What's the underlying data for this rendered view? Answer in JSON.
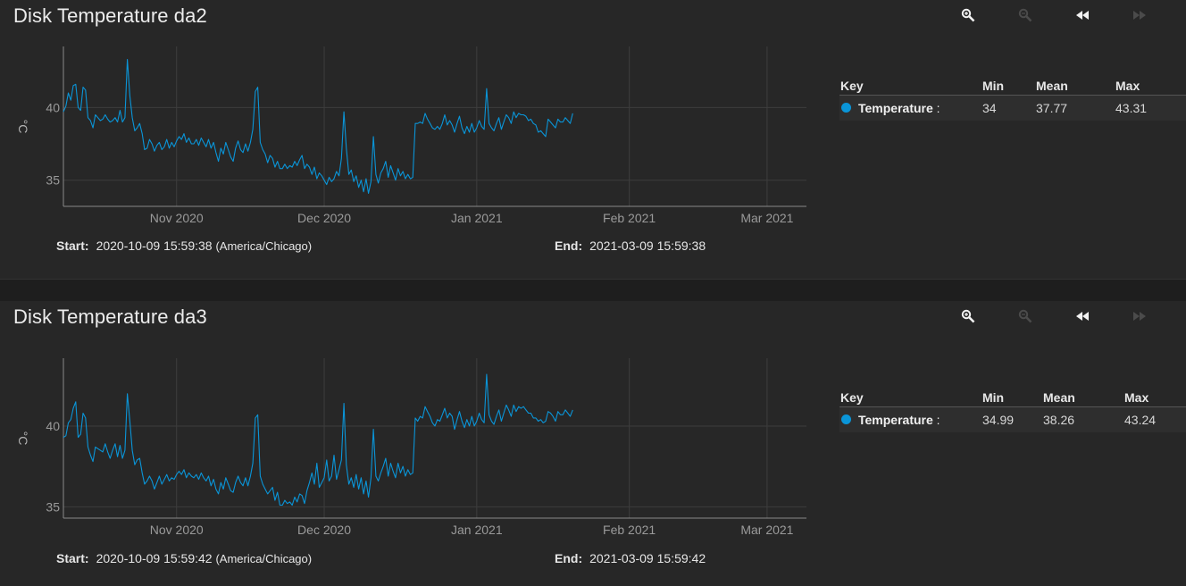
{
  "panels": [
    {
      "title": "Disk Temperature da2",
      "start_label": "Start:",
      "start_value": "2020-10-09 15:59:38",
      "timezone": "(America/Chicago)",
      "end_label": "End:",
      "end_value": "2021-03-09 15:59:38",
      "legend": {
        "headers": [
          "Key",
          "Min",
          "Mean",
          "Max"
        ],
        "rows": [
          {
            "name": "Temperature",
            "suffix": " :",
            "min": "34",
            "mean": "37.77",
            "max": "43.31",
            "color": "#0a95d8"
          }
        ]
      }
    },
    {
      "title": "Disk Temperature da3",
      "start_label": "Start:",
      "start_value": "2020-10-09 15:59:42",
      "timezone": "(America/Chicago)",
      "end_label": "End:",
      "end_value": "2021-03-09 15:59:42",
      "legend": {
        "headers": [
          "Key",
          "Min",
          "Mean",
          "Max"
        ],
        "rows": [
          {
            "name": "Temperature",
            "suffix": " :",
            "min": "34.99",
            "mean": "38.26",
            "max": "43.24",
            "color": "#0a95d8"
          }
        ]
      }
    }
  ],
  "toolbar": {
    "icons": [
      "zoom-in-icon",
      "zoom-out-icon",
      "rewind-icon",
      "fast-forward-icon"
    ],
    "enabled": [
      true,
      false,
      true,
      false
    ]
  },
  "chart_data": [
    {
      "type": "line",
      "title": "Disk Temperature da2",
      "ylabel": "°C",
      "xlim": [
        "2020-10-09",
        "2021-03-09"
      ],
      "ylim": [
        33.2,
        44.2
      ],
      "yticks": [
        35,
        40
      ],
      "xticks": [
        {
          "date": "2020-11-01",
          "label": "Nov 2020"
        },
        {
          "date": "2020-12-01",
          "label": "Dec 2020"
        },
        {
          "date": "2021-01-01",
          "label": "Jan 2021"
        },
        {
          "date": "2021-02-01",
          "label": "Feb 2021"
        },
        {
          "date": "2021-03-01",
          "label": "Mar 2021"
        }
      ],
      "grid": true,
      "color": "#0a95d8",
      "series": [
        {
          "name": "Temperature",
          "x_start": "2020-10-09",
          "points_per_day": 2,
          "values": [
            39.7,
            40.1,
            41.0,
            40.5,
            41.5,
            41.6,
            40.0,
            39.8,
            41.4,
            41.2,
            39.3,
            39.1,
            38.6,
            39.5,
            39.3,
            39.1,
            39.2,
            39.5,
            39.2,
            39.0,
            39.1,
            39.3,
            39.0,
            39.8,
            39.0,
            39.3,
            43.3,
            40.8,
            39.3,
            38.4,
            38.6,
            38.9,
            38.2,
            37.1,
            37.2,
            37.8,
            37.5,
            37.0,
            37.4,
            37.6,
            37.1,
            37.3,
            37.8,
            37.2,
            37.6,
            37.3,
            37.7,
            38.0,
            37.8,
            38.2,
            37.6,
            37.9,
            37.5,
            37.5,
            37.8,
            37.4,
            37.9,
            37.6,
            37.3,
            37.8,
            37.2,
            37.6,
            36.9,
            36.3,
            37.2,
            36.8,
            37.6,
            37.1,
            36.6,
            36.3,
            37.2,
            37.7,
            37.1,
            36.9,
            37.5,
            37.0,
            37.6,
            38.5,
            41.1,
            41.4,
            37.6,
            37.1,
            36.8,
            36.2,
            36.7,
            36.5,
            35.9,
            36.3,
            35.8,
            35.8,
            36.1,
            35.8,
            36.0,
            35.9,
            36.3,
            36.0,
            36.4,
            36.7,
            35.8,
            36.1,
            35.9,
            35.4,
            35.9,
            35.1,
            35.5,
            35.3,
            35.0,
            34.7,
            35.2,
            34.9,
            35.1,
            35.6,
            35.3,
            36.5,
            39.7,
            37.2,
            35.4,
            35.7,
            34.9,
            35.3,
            34.5,
            35.0,
            34.2,
            35.1,
            34.1,
            34.9,
            38.0,
            35.4,
            34.8,
            35.5,
            35.8,
            36.3,
            35.2,
            36.0,
            35.5,
            35.0,
            35.8,
            35.3,
            35.6,
            35.1,
            35.4,
            35.1,
            35.2,
            38.9,
            38.9,
            39.0,
            38.9,
            39.6,
            39.2,
            38.9,
            38.6,
            38.5,
            38.7,
            38.5,
            38.9,
            39.5,
            38.8,
            39.1,
            38.8,
            38.3,
            38.9,
            39.4,
            38.6,
            38.2,
            38.7,
            38.3,
            38.9,
            38.3,
            38.6,
            39.1,
            38.7,
            38.5,
            41.3,
            38.9,
            38.6,
            38.4,
            38.9,
            39.3,
            38.5,
            39.0,
            39.5,
            39.3,
            38.9,
            39.7,
            39.3,
            39.6,
            39.5,
            39.5,
            39.4,
            39.1,
            39.2,
            38.9,
            38.8,
            38.3,
            38.4,
            38.2,
            38.0,
            39.2,
            39.0,
            38.8,
            38.6,
            39.2,
            39.0,
            39.0,
            39.3,
            39.1,
            38.9,
            39.6
          ]
        }
      ]
    },
    {
      "type": "line",
      "title": "Disk Temperature da3",
      "ylabel": "°C",
      "xlim": [
        "2020-10-09",
        "2021-03-09"
      ],
      "ylim": [
        34.3,
        44.2
      ],
      "yticks": [
        35,
        40
      ],
      "xticks": [
        {
          "date": "2020-11-01",
          "label": "Nov 2020"
        },
        {
          "date": "2020-12-01",
          "label": "Dec 2020"
        },
        {
          "date": "2021-01-01",
          "label": "Jan 2021"
        },
        {
          "date": "2021-02-01",
          "label": "Feb 2021"
        },
        {
          "date": "2021-03-01",
          "label": "Mar 2021"
        }
      ],
      "grid": true,
      "color": "#0a95d8",
      "series": [
        {
          "name": "Temperature",
          "x_start": "2020-10-09",
          "points_per_day": 2,
          "values": [
            39.3,
            39.4,
            40.2,
            40.4,
            41.1,
            41.5,
            39.3,
            39.5,
            40.8,
            40.5,
            38.7,
            38.2,
            37.8,
            38.7,
            38.6,
            38.5,
            38.4,
            38.9,
            38.4,
            38.0,
            38.5,
            38.9,
            38.1,
            38.8,
            38.0,
            38.5,
            42.0,
            40.3,
            38.5,
            37.6,
            37.9,
            38.0,
            37.1,
            36.4,
            36.6,
            36.9,
            36.6,
            36.1,
            36.5,
            36.9,
            36.4,
            36.7,
            37.0,
            36.6,
            36.8,
            36.7,
            37.0,
            37.2,
            37.0,
            37.3,
            36.8,
            37.1,
            36.9,
            36.8,
            37.0,
            36.7,
            37.1,
            36.8,
            36.6,
            36.9,
            36.3,
            36.7,
            36.1,
            35.8,
            36.5,
            36.1,
            36.8,
            36.4,
            36.0,
            35.9,
            36.5,
            36.9,
            36.5,
            36.3,
            36.8,
            36.3,
            36.9,
            37.7,
            40.5,
            40.7,
            36.9,
            36.4,
            36.1,
            35.8,
            36.0,
            36.2,
            35.4,
            35.9,
            35.1,
            35.1,
            35.4,
            35.2,
            35.3,
            35.1,
            35.6,
            35.3,
            35.8,
            35.7,
            35.2,
            36.0,
            36.5,
            37.1,
            36.4,
            37.7,
            36.2,
            36.5,
            36.8,
            37.9,
            36.6,
            36.9,
            38.2,
            36.7,
            37.3,
            37.9,
            41.4,
            37.6,
            36.4,
            36.8,
            36.2,
            37.0,
            36.1,
            36.8,
            35.8,
            36.6,
            35.6,
            36.8,
            39.8,
            36.9,
            36.6,
            37.1,
            37.5,
            38.0,
            36.9,
            37.7,
            37.2,
            36.8,
            37.7,
            37.1,
            37.5,
            36.9,
            37.3,
            37.0,
            37.1,
            40.5,
            40.3,
            40.6,
            40.5,
            41.2,
            40.9,
            40.6,
            40.2,
            40.0,
            40.4,
            40.3,
            40.7,
            41.1,
            40.5,
            40.8,
            40.6,
            39.8,
            40.4,
            40.9,
            40.3,
            39.9,
            40.4,
            40.0,
            40.6,
            40.0,
            40.3,
            40.8,
            40.4,
            40.2,
            43.2,
            40.7,
            40.3,
            40.1,
            40.6,
            41.0,
            40.3,
            40.8,
            41.3,
            41.0,
            40.6,
            41.3,
            40.9,
            41.2,
            41.1,
            41.2,
            41.0,
            40.8,
            40.8,
            40.5,
            40.5,
            40.3,
            40.4,
            40.2,
            40.3,
            40.9,
            40.8,
            40.6,
            40.3,
            40.9,
            40.7,
            40.7,
            41.0,
            40.8,
            40.6,
            41.0
          ]
        }
      ]
    }
  ]
}
